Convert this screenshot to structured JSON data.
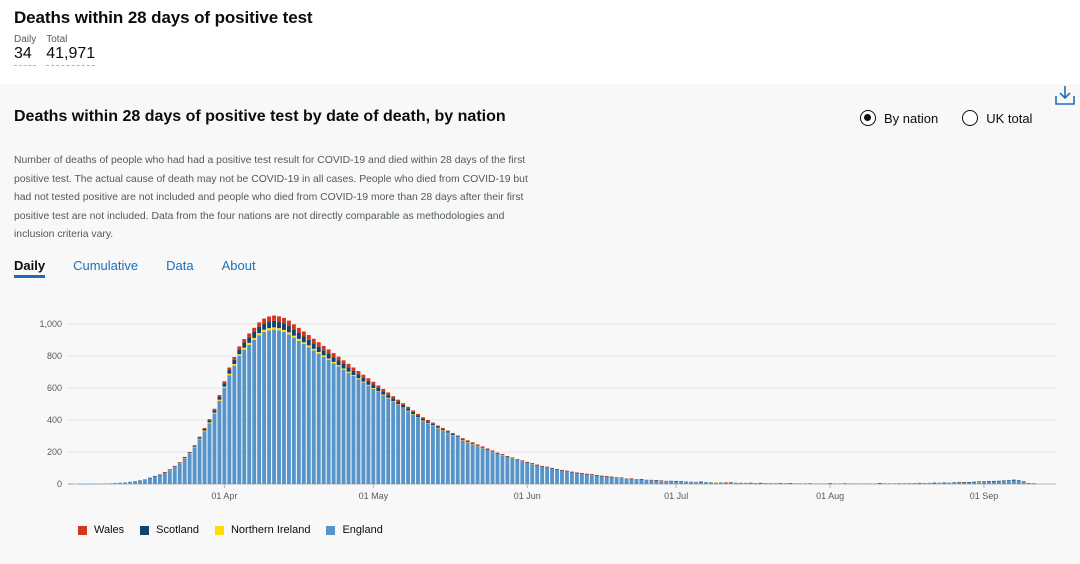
{
  "header": {
    "title": "Deaths within 28 days of positive test",
    "daily_label": "Daily",
    "daily_value": "34",
    "total_label": "Total",
    "total_value": "41,971"
  },
  "card": {
    "title": "Deaths within 28 days of positive test by date of death, by nation",
    "radio_by_nation": "By nation",
    "radio_uk_total": "UK total",
    "download_icon": "download-icon",
    "description": "Number of deaths of people who had had a positive test result for COVID-19 and died within 28 days of the first positive test. The actual cause of death may not be COVID-19 in all cases. People who died from COVID-19 but had not tested positive are not included and people who died from COVID-19 more than 28 days after their first positive test are not included. Data from the four nations are not directly comparable as methodologies and inclusion criteria vary.",
    "tabs": [
      {
        "label": "Daily",
        "active": true
      },
      {
        "label": "Cumulative",
        "active": false
      },
      {
        "label": "Data",
        "active": false
      },
      {
        "label": "About",
        "active": false
      }
    ]
  },
  "chart_data": {
    "type": "bar",
    "stacked": true,
    "title": "Deaths within 28 days of positive test by date of death, by nation",
    "ylim": [
      0,
      1050
    ],
    "yticks": [
      0,
      200,
      400,
      600,
      800,
      1000
    ],
    "ytick_labels": [
      "0",
      "200",
      "400",
      "600",
      "800",
      "1,000"
    ],
    "start_date": "2020-03-01",
    "xtick_labels": [
      "01 Apr",
      "01 May",
      "01 Jun",
      "01 Jul",
      "01 Aug",
      "01 Sep"
    ],
    "xtick_days": [
      31,
      61,
      92,
      122,
      153,
      184
    ],
    "colors": {
      "Wales": "#d4351c",
      "Scotland": "#12436d",
      "Northern Ireland": "#ffdd00",
      "England": "#5694ca"
    },
    "series": [
      {
        "name": "Wales",
        "values": [
          0,
          0,
          0,
          0,
          0,
          0,
          0,
          0,
          0,
          0,
          0,
          0,
          0,
          0,
          0,
          0,
          0,
          0,
          0,
          1,
          1,
          2,
          2,
          3,
          3,
          4,
          5,
          6,
          8,
          10,
          12,
          14,
          16,
          18,
          20,
          22,
          24,
          26,
          28,
          30,
          32,
          33,
          34,
          35,
          34,
          33,
          32,
          31,
          30,
          29,
          28,
          27,
          26,
          25,
          24,
          23,
          22,
          21,
          20,
          19,
          18,
          17,
          16,
          15,
          14,
          13,
          12,
          11,
          10,
          9,
          8,
          8,
          7,
          7,
          6,
          6,
          5,
          5,
          5,
          4,
          4,
          4,
          3,
          3,
          3,
          3,
          2,
          2,
          2,
          2,
          2,
          2,
          2,
          1,
          1,
          1,
          1,
          1,
          1,
          1,
          1,
          1,
          1,
          1,
          1,
          1,
          1,
          1,
          1,
          1,
          1,
          1,
          0,
          1,
          0,
          1,
          0,
          1,
          0,
          1,
          0,
          1,
          0,
          1,
          0,
          0,
          0,
          1,
          0,
          0,
          0,
          0,
          1,
          0,
          0,
          0,
          0,
          1,
          0,
          0,
          0,
          0,
          0,
          1,
          0,
          0,
          0,
          0,
          0,
          1,
          0,
          0,
          0,
          0,
          0,
          0,
          1,
          0,
          0,
          0,
          0,
          0,
          0,
          1,
          0,
          0,
          0,
          0,
          0,
          0,
          0,
          1,
          0,
          0,
          0,
          0,
          0,
          0,
          0,
          0,
          1,
          0,
          0,
          0,
          0,
          0,
          0,
          0,
          0,
          0,
          0,
          0,
          0,
          0,
          0,
          0,
          0,
          0,
          0
        ]
      },
      {
        "name": "Scotland",
        "values": [
          0,
          0,
          0,
          0,
          0,
          0,
          0,
          0,
          0,
          0,
          0,
          0,
          0,
          0,
          0,
          0,
          1,
          1,
          1,
          1,
          2,
          2,
          3,
          4,
          5,
          6,
          8,
          10,
          12,
          14,
          17,
          20,
          23,
          26,
          29,
          32,
          35,
          37,
          39,
          40,
          41,
          41,
          40,
          40,
          39,
          38,
          37,
          36,
          35,
          34,
          33,
          32,
          31,
          30,
          29,
          28,
          27,
          26,
          25,
          24,
          23,
          22,
          21,
          20,
          19,
          18,
          17,
          16,
          15,
          14,
          13,
          12,
          11,
          10,
          9,
          9,
          8,
          8,
          7,
          7,
          6,
          6,
          5,
          5,
          5,
          4,
          4,
          4,
          3,
          3,
          3,
          3,
          2,
          2,
          2,
          2,
          2,
          2,
          1,
          1,
          1,
          1,
          1,
          1,
          1,
          1,
          1,
          1,
          1,
          1,
          0,
          1,
          0,
          1,
          0,
          1,
          0,
          0,
          1,
          0,
          0,
          0,
          1,
          0,
          0,
          0,
          0,
          1,
          0,
          0,
          0,
          0,
          0,
          1,
          0,
          0,
          0,
          0,
          0,
          1,
          0,
          0,
          0,
          0,
          0,
          1,
          0,
          0,
          0,
          0,
          0,
          0,
          0,
          1,
          0,
          0,
          0,
          0,
          0,
          0,
          0,
          0,
          0,
          1,
          0,
          0,
          0,
          0,
          0,
          0,
          0,
          0,
          0,
          0,
          1,
          0,
          1,
          0,
          1,
          1,
          1,
          1,
          2,
          2,
          2,
          3,
          3,
          3,
          4,
          4,
          5,
          5,
          4,
          4,
          3
        ]
      },
      {
        "name": "Northern Ireland",
        "values": [
          0,
          0,
          0,
          0,
          0,
          0,
          0,
          0,
          0,
          0,
          0,
          0,
          0,
          0,
          0,
          0,
          0,
          0,
          0,
          0,
          1,
          1,
          1,
          2,
          2,
          3,
          3,
          4,
          5,
          6,
          7,
          8,
          9,
          10,
          11,
          12,
          12,
          13,
          13,
          14,
          14,
          14,
          14,
          13,
          13,
          12,
          12,
          11,
          11,
          10,
          10,
          9,
          9,
          8,
          8,
          7,
          7,
          6,
          6,
          5,
          5,
          5,
          4,
          4,
          4,
          3,
          3,
          3,
          3,
          2,
          2,
          2,
          2,
          2,
          1,
          1,
          1,
          1,
          1,
          1,
          1,
          1,
          1,
          1,
          0,
          1,
          0,
          1,
          0,
          1,
          0,
          1,
          0,
          1,
          0,
          0,
          1,
          0,
          0,
          0,
          1,
          0,
          0,
          0,
          0,
          1,
          0,
          0,
          0,
          0,
          0,
          1,
          0,
          0,
          0,
          0,
          0,
          0,
          0,
          1,
          0,
          0,
          0,
          0,
          0,
          0,
          0,
          0,
          0,
          0,
          1,
          0,
          0,
          0,
          0,
          0,
          0,
          0,
          0,
          0,
          0,
          0,
          0,
          0,
          0,
          0,
          0,
          0,
          0,
          0,
          0,
          0,
          0,
          0,
          0,
          0,
          0,
          0,
          0,
          0,
          0,
          0,
          0,
          0,
          0,
          0,
          0,
          0,
          0,
          0,
          0,
          0,
          0,
          0,
          0,
          0,
          0,
          0,
          0,
          0,
          0,
          0,
          0,
          1,
          0,
          0,
          0,
          0,
          0,
          0,
          0,
          0,
          0,
          0,
          0,
          0,
          0
        ]
      },
      {
        "name": "England",
        "values": [
          1,
          0,
          1,
          1,
          1,
          2,
          2,
          3,
          4,
          6,
          8,
          10,
          14,
          18,
          24,
          30,
          38,
          48,
          58,
          72,
          88,
          108,
          130,
          160,
          190,
          230,
          280,
          330,
          380,
          440,
          520,
          600,
          680,
          740,
          800,
          840,
          870,
          900,
          930,
          950,
          960,
          965,
          960,
          950,
          935,
          915,
          895,
          875,
          855,
          835,
          815,
          795,
          775,
          755,
          735,
          715,
          695,
          675,
          655,
          635,
          615,
          595,
          575,
          555,
          535,
          515,
          495,
          475,
          455,
          435,
          415,
          395,
          380,
          365,
          350,
          335,
          320,
          305,
          290,
          275,
          262,
          250,
          238,
          226,
          214,
          202,
          190,
          180,
          170,
          160,
          150,
          142,
          134,
          126,
          118,
          110,
          104,
          98,
          92,
          86,
          80,
          75,
          70,
          66,
          62,
          58,
          54,
          50,
          47,
          44,
          41,
          38,
          35,
          33,
          31,
          29,
          27,
          25,
          23,
          21,
          20,
          19,
          18,
          17,
          16,
          15,
          14,
          13,
          12,
          11,
          10,
          10,
          9,
          9,
          8,
          8,
          7,
          7,
          6,
          6,
          6,
          5,
          5,
          5,
          5,
          4,
          4,
          4,
          4,
          3,
          3,
          3,
          3,
          3,
          3,
          3,
          3,
          3,
          3,
          3,
          3,
          3,
          3,
          4,
          4,
          4,
          4,
          5,
          5,
          5,
          6,
          6,
          6,
          7,
          7,
          8,
          8,
          9,
          9,
          10,
          10,
          11,
          12,
          13,
          14,
          15,
          16,
          17,
          18,
          20,
          22,
          18,
          12
        ]
      }
    ],
    "legend": [
      "Wales",
      "Scotland",
      "Northern Ireland",
      "England"
    ]
  }
}
